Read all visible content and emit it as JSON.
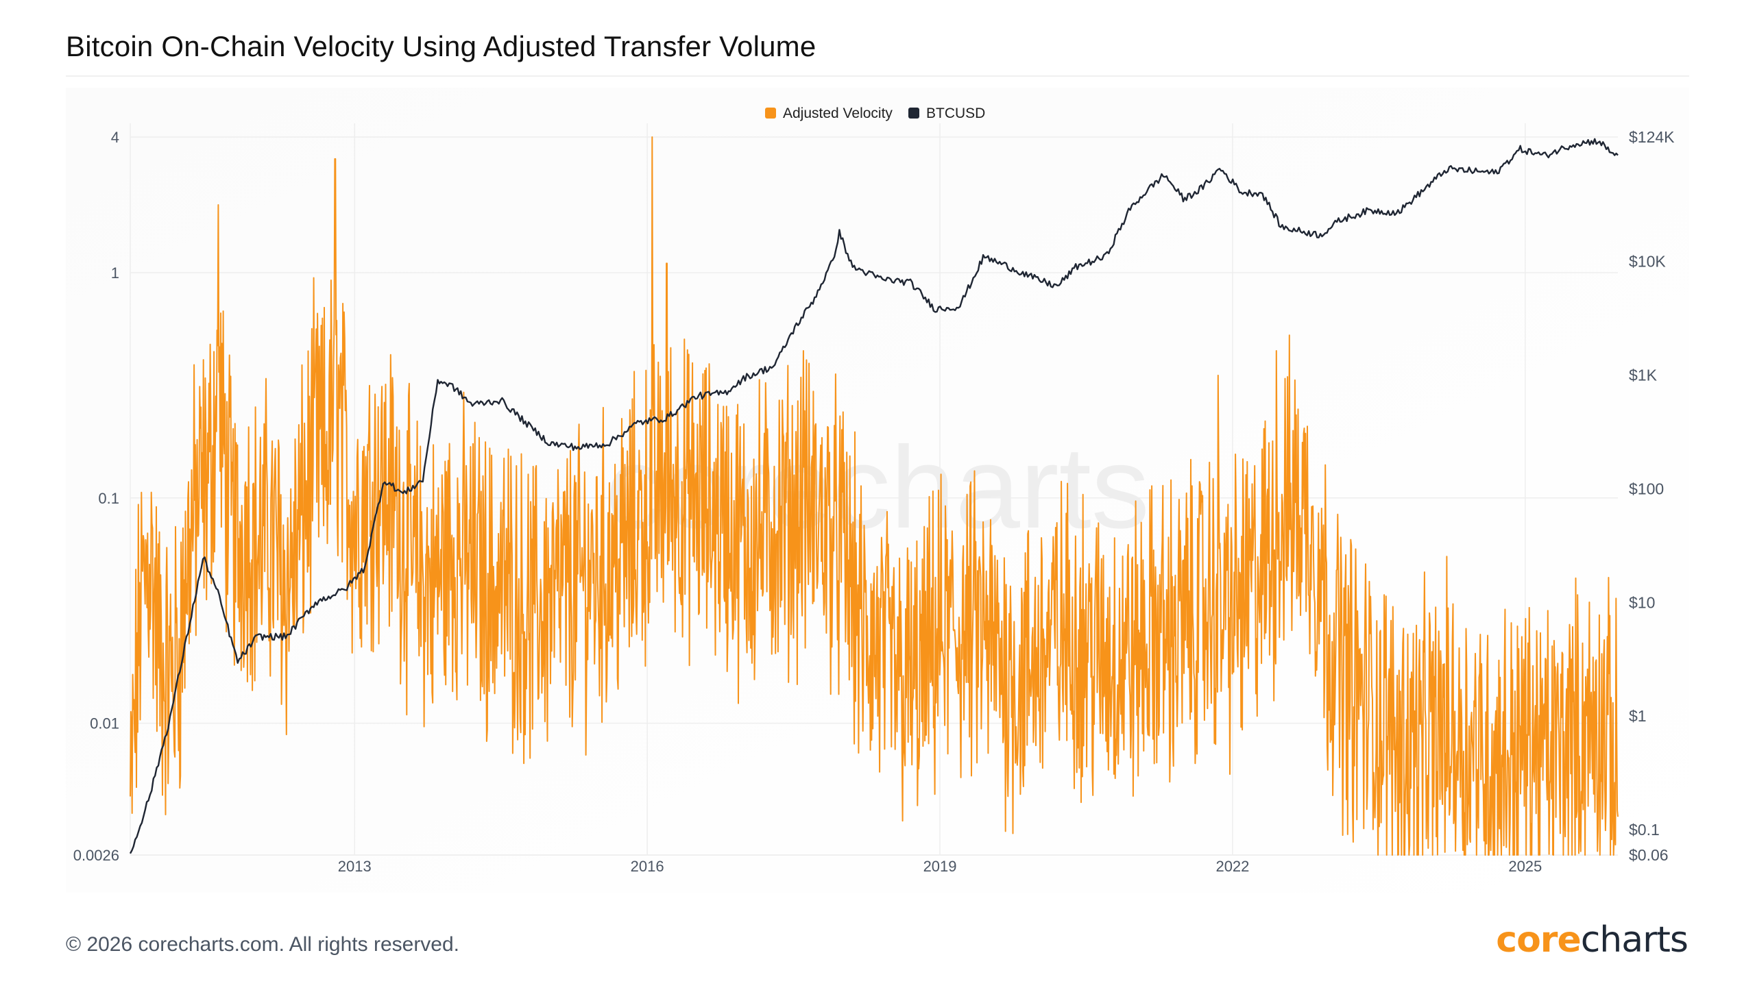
{
  "title": "Bitcoin On-Chain Velocity Using Adjusted Transfer Volume",
  "footer": "© 2026 corecharts.com. All rights reserved.",
  "brand": {
    "part1": "core",
    "part2": "charts"
  },
  "watermark": "corecharts",
  "colors": {
    "velocity": "#f7931a",
    "btcusd": "#1f2633",
    "grid": "#eeeeee",
    "axis_text": "#4b5563"
  },
  "chart_data": {
    "type": "line",
    "title": "Bitcoin On-Chain Velocity Using Adjusted Transfer Volume",
    "legend": {
      "placement": "top-center"
    },
    "grid": true,
    "x_axis": {
      "ticks": [
        "2013",
        "2016",
        "2019",
        "2022",
        "2025"
      ],
      "range": [
        2010.7,
        2025.95
      ]
    },
    "y_left": {
      "scale": "log",
      "ticks": [
        "4",
        "1",
        "0.1",
        "0.01",
        "0.0026"
      ],
      "tick_values": [
        4,
        1,
        0.1,
        0.01,
        0.0026
      ],
      "range": [
        0.0026,
        4
      ]
    },
    "y_right": {
      "scale": "log",
      "ticks": [
        "$124K",
        "$10K",
        "$1K",
        "$100",
        "$10",
        "$1",
        "$0.1",
        "$0.06"
      ],
      "tick_values": [
        124000,
        10000,
        1000,
        100,
        10,
        1,
        0.1,
        0.06
      ],
      "range": [
        0.06,
        124000
      ]
    },
    "series": [
      {
        "name": "Adjusted Velocity",
        "axis": "left",
        "points": [
          [
            2010.7,
            0.004
          ],
          [
            2010.8,
            0.03
          ],
          [
            2010.9,
            0.06
          ],
          [
            2011.0,
            0.02
          ],
          [
            2011.1,
            0.015
          ],
          [
            2011.2,
            0.02
          ],
          [
            2011.3,
            0.06
          ],
          [
            2011.4,
            0.1
          ],
          [
            2011.5,
            0.12
          ],
          [
            2011.6,
            0.3
          ],
          [
            2011.7,
            0.1
          ],
          [
            2011.8,
            0.06
          ],
          [
            2011.9,
            0.08
          ],
          [
            2012.0,
            0.06
          ],
          [
            2012.1,
            0.07
          ],
          [
            2012.2,
            0.06
          ],
          [
            2012.3,
            0.04
          ],
          [
            2012.4,
            0.06
          ],
          [
            2012.5,
            0.1
          ],
          [
            2012.6,
            0.18
          ],
          [
            2012.7,
            0.15
          ],
          [
            2012.8,
            0.3
          ],
          [
            2012.9,
            0.15
          ],
          [
            2013.0,
            0.08
          ],
          [
            2013.2,
            0.12
          ],
          [
            2013.4,
            0.1
          ],
          [
            2013.6,
            0.05
          ],
          [
            2013.8,
            0.04
          ],
          [
            2014.0,
            0.06
          ],
          [
            2014.2,
            0.05
          ],
          [
            2014.4,
            0.04
          ],
          [
            2014.6,
            0.04
          ],
          [
            2014.8,
            0.03
          ],
          [
            2015.0,
            0.035
          ],
          [
            2015.2,
            0.04
          ],
          [
            2015.4,
            0.045
          ],
          [
            2015.6,
            0.05
          ],
          [
            2015.8,
            0.06
          ],
          [
            2016.0,
            0.09
          ],
          [
            2016.2,
            0.12
          ],
          [
            2016.4,
            0.1
          ],
          [
            2016.6,
            0.09
          ],
          [
            2016.8,
            0.08
          ],
          [
            2017.0,
            0.06
          ],
          [
            2017.2,
            0.07
          ],
          [
            2017.4,
            0.08
          ],
          [
            2017.6,
            0.09
          ],
          [
            2017.8,
            0.08
          ],
          [
            2018.0,
            0.06
          ],
          [
            2018.2,
            0.025
          ],
          [
            2018.4,
            0.02
          ],
          [
            2018.6,
            0.015
          ],
          [
            2018.8,
            0.015
          ],
          [
            2019.0,
            0.025
          ],
          [
            2019.2,
            0.025
          ],
          [
            2019.4,
            0.025
          ],
          [
            2019.6,
            0.02
          ],
          [
            2019.8,
            0.015
          ],
          [
            2020.0,
            0.02
          ],
          [
            2020.2,
            0.025
          ],
          [
            2020.4,
            0.025
          ],
          [
            2020.6,
            0.02
          ],
          [
            2020.8,
            0.02
          ],
          [
            2021.0,
            0.02
          ],
          [
            2021.2,
            0.025
          ],
          [
            2021.4,
            0.025
          ],
          [
            2021.6,
            0.03
          ],
          [
            2021.8,
            0.035
          ],
          [
            2022.0,
            0.03
          ],
          [
            2022.2,
            0.04
          ],
          [
            2022.4,
            0.06
          ],
          [
            2022.6,
            0.1
          ],
          [
            2022.8,
            0.08
          ],
          [
            2023.0,
            0.025
          ],
          [
            2023.2,
            0.015
          ],
          [
            2023.4,
            0.012
          ],
          [
            2023.6,
            0.009
          ],
          [
            2023.8,
            0.008
          ],
          [
            2024.0,
            0.008
          ],
          [
            2024.2,
            0.01
          ],
          [
            2024.4,
            0.008
          ],
          [
            2024.6,
            0.007
          ],
          [
            2024.8,
            0.007
          ],
          [
            2025.0,
            0.008
          ],
          [
            2025.2,
            0.007
          ],
          [
            2025.4,
            0.008
          ],
          [
            2025.6,
            0.009
          ],
          [
            2025.8,
            0.01
          ],
          [
            2025.95,
            0.006
          ]
        ],
        "peaks": [
          [
            2011.6,
            2.0
          ],
          [
            2012.8,
            3.2
          ],
          [
            2016.05,
            4.0
          ],
          [
            2016.2,
            1.1
          ],
          [
            2022.45,
            0.45
          ],
          [
            2021.85,
            0.35
          ],
          [
            2017.6,
            0.45
          ]
        ]
      },
      {
        "name": "BTCUSD",
        "axis": "right",
        "points": [
          [
            2010.7,
            0.06
          ],
          [
            2010.9,
            0.2
          ],
          [
            2011.1,
            0.9
          ],
          [
            2011.3,
            6
          ],
          [
            2011.45,
            25
          ],
          [
            2011.6,
            12
          ],
          [
            2011.8,
            3
          ],
          [
            2012.0,
            5
          ],
          [
            2012.3,
            5
          ],
          [
            2012.6,
            10
          ],
          [
            2012.9,
            13
          ],
          [
            2013.1,
            20
          ],
          [
            2013.3,
            120
          ],
          [
            2013.5,
            90
          ],
          [
            2013.7,
            120
          ],
          [
            2013.85,
            900
          ],
          [
            2014.0,
            800
          ],
          [
            2014.2,
            550
          ],
          [
            2014.5,
            600
          ],
          [
            2014.8,
            350
          ],
          [
            2015.0,
            250
          ],
          [
            2015.3,
            230
          ],
          [
            2015.6,
            250
          ],
          [
            2015.9,
            380
          ],
          [
            2016.2,
            420
          ],
          [
            2016.5,
            650
          ],
          [
            2016.8,
            700
          ],
          [
            2017.0,
            950
          ],
          [
            2017.3,
            1200
          ],
          [
            2017.5,
            2500
          ],
          [
            2017.7,
            4500
          ],
          [
            2017.9,
            10000
          ],
          [
            2017.97,
            18000
          ],
          [
            2018.1,
            9000
          ],
          [
            2018.4,
            7000
          ],
          [
            2018.7,
            6500
          ],
          [
            2018.95,
            3800
          ],
          [
            2019.2,
            4000
          ],
          [
            2019.45,
            11000
          ],
          [
            2019.7,
            9000
          ],
          [
            2019.95,
            7200
          ],
          [
            2020.2,
            6000
          ],
          [
            2020.4,
            9000
          ],
          [
            2020.7,
            11000
          ],
          [
            2020.95,
            29000
          ],
          [
            2021.1,
            40000
          ],
          [
            2021.3,
            58000
          ],
          [
            2021.5,
            35000
          ],
          [
            2021.7,
            45000
          ],
          [
            2021.87,
            66000
          ],
          [
            2022.1,
            40000
          ],
          [
            2022.3,
            40000
          ],
          [
            2022.5,
            20000
          ],
          [
            2022.9,
            17000
          ],
          [
            2023.1,
            23000
          ],
          [
            2023.4,
            28000
          ],
          [
            2023.7,
            27000
          ],
          [
            2023.95,
            42000
          ],
          [
            2024.2,
            65000
          ],
          [
            2024.5,
            62000
          ],
          [
            2024.7,
            60000
          ],
          [
            2024.95,
            97000
          ],
          [
            2025.2,
            85000
          ],
          [
            2025.5,
            108000
          ],
          [
            2025.75,
            115000
          ],
          [
            2025.9,
            88000
          ],
          [
            2025.95,
            90000
          ]
        ]
      }
    ]
  }
}
